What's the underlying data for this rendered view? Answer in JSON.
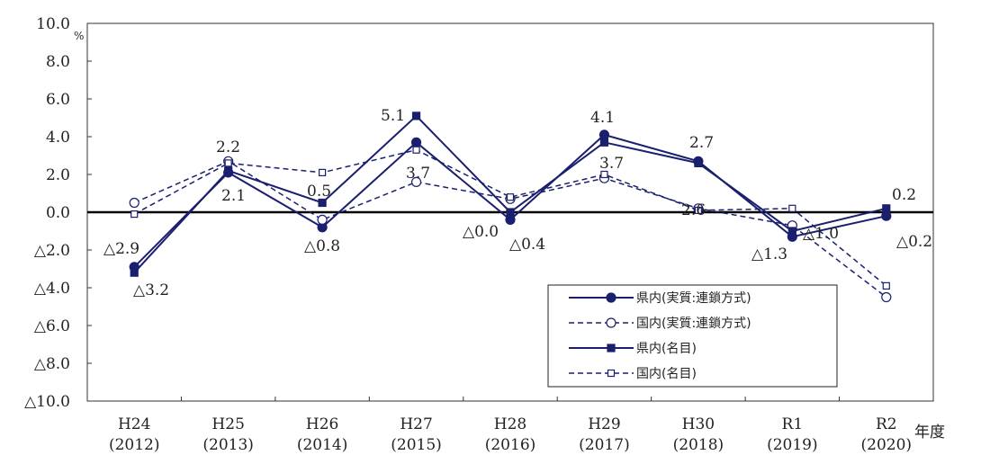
{
  "chart_data": {
    "type": "line",
    "unit": "%",
    "xlabel": "年度",
    "ylim": [
      -10,
      10
    ],
    "ytick_step": 2,
    "ytick_labels": [
      "10.0",
      "8.0",
      "6.0",
      "4.0",
      "2.0",
      "0.0",
      "△2.0",
      "△4.0",
      "△6.0",
      "△8.0",
      "△10.0"
    ],
    "categories": [
      {
        "era": "H24",
        "year": "(2012)"
      },
      {
        "era": "H25",
        "year": "(2013)"
      },
      {
        "era": "H26",
        "year": "(2014)"
      },
      {
        "era": "H27",
        "year": "(2015)"
      },
      {
        "era": "H28",
        "year": "(2016)"
      },
      {
        "era": "H29",
        "year": "(2017)"
      },
      {
        "era": "H30",
        "year": "(2018)"
      },
      {
        "era": "R1",
        "year": "(2019)"
      },
      {
        "era": "R2",
        "year": "(2020)"
      }
    ],
    "series": [
      {
        "name": "県内(実質:連鎖方式)",
        "dashed": false,
        "marker": "circle",
        "filled": true,
        "color": "#1a1f6e",
        "values": [
          -2.9,
          2.1,
          -0.8,
          3.7,
          -0.4,
          4.1,
          2.7,
          -1.3,
          -0.2
        ]
      },
      {
        "name": "国内(実質:連鎖方式)",
        "dashed": true,
        "marker": "circle",
        "filled": false,
        "color": "#1a1f6e",
        "values": [
          0.5,
          2.7,
          -0.4,
          1.6,
          0.7,
          1.8,
          0.2,
          -0.7,
          -4.5
        ]
      },
      {
        "name": "県内(名目)",
        "dashed": false,
        "marker": "square",
        "filled": true,
        "color": "#1a1f6e",
        "values": [
          -3.2,
          2.2,
          0.5,
          5.1,
          0.0,
          3.7,
          2.6,
          -1.0,
          0.2
        ]
      },
      {
        "name": "国内(名目)",
        "dashed": true,
        "marker": "square",
        "filled": false,
        "color": "#1a1f6e",
        "values": [
          -0.1,
          2.6,
          2.1,
          3.3,
          0.8,
          2.0,
          0.1,
          0.2,
          -3.9
        ]
      }
    ],
    "data_labels": [
      {
        "text": "△2.9"
      },
      {
        "text": "△3.2"
      },
      {
        "text": "2.2"
      },
      {
        "text": "2.1"
      },
      {
        "text": "0.5"
      },
      {
        "text": "△0.8"
      },
      {
        "text": "5.1"
      },
      {
        "text": "3.7"
      },
      {
        "text": "△0.0"
      },
      {
        "text": "△0.4"
      },
      {
        "text": "4.1"
      },
      {
        "text": "3.7"
      },
      {
        "text": "2.7"
      },
      {
        "text": "2.6"
      },
      {
        "text": "△1.3"
      },
      {
        "text": "△1.0"
      },
      {
        "text": "0.2"
      },
      {
        "text": "△0.2"
      }
    ],
    "legend_position": "bottom-right",
    "grid": false
  }
}
